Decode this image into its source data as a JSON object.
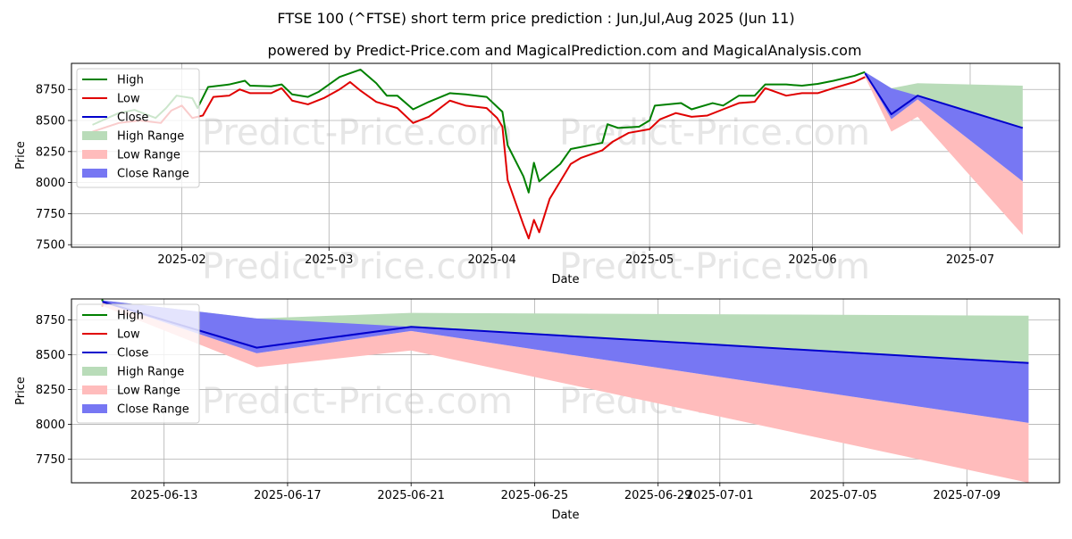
{
  "title": "FTSE 100 (^FTSE) short term price prediction : Jun,Jul,Aug 2025 (Jun 11)",
  "subtitle": "powered by Predict-Price.com and MagicalPrediction.com and MagicalAnalysis.com",
  "watermark": "Predict-Price.com",
  "colors": {
    "high": "#008000",
    "low": "#e00000",
    "close": "#0000cc",
    "high_range": "#b9dcb9",
    "low_range": "#ffbcbc",
    "close_range": "#7777f3",
    "grid": "#b0b0b0",
    "watermark": "#e6e6e6"
  },
  "chart_data": [
    {
      "type": "line",
      "xlabel": "Date",
      "ylabel": "Price",
      "xlim": [
        "2025-01-11",
        "2025-07-18"
      ],
      "ylim": [
        7480,
        8960
      ],
      "grid": true,
      "legend": "top-left",
      "x_ticks": [
        "2025-02",
        "2025-03",
        "2025-04",
        "2025-05",
        "2025-06",
        "2025-07"
      ],
      "y_ticks": [
        7500,
        7750,
        8000,
        8250,
        8500,
        8750
      ],
      "legend_entries": [
        "High",
        "Low",
        "Close",
        "High Range",
        "Low Range",
        "Close Range"
      ],
      "series": [
        {
          "name": "High",
          "points": [
            [
              "2025-01-15",
              8465
            ],
            [
              "2025-01-20",
              8560
            ],
            [
              "2025-01-23",
              8585
            ],
            [
              "2025-01-27",
              8520
            ],
            [
              "2025-01-29",
              8600
            ],
            [
              "2025-01-31",
              8700
            ],
            [
              "2025-02-03",
              8680
            ],
            [
              "2025-02-04",
              8600
            ],
            [
              "2025-02-06",
              8770
            ],
            [
              "2025-02-10",
              8790
            ],
            [
              "2025-02-13",
              8820
            ],
            [
              "2025-02-14",
              8780
            ],
            [
              "2025-02-18",
              8775
            ],
            [
              "2025-02-20",
              8790
            ],
            [
              "2025-02-22",
              8710
            ],
            [
              "2025-02-25",
              8690
            ],
            [
              "2025-02-27",
              8730
            ],
            [
              "2025-03-03",
              8850
            ],
            [
              "2025-03-07",
              8910
            ],
            [
              "2025-03-10",
              8800
            ],
            [
              "2025-03-12",
              8700
            ],
            [
              "2025-03-14",
              8700
            ],
            [
              "2025-03-17",
              8590
            ],
            [
              "2025-03-20",
              8650
            ],
            [
              "2025-03-24",
              8720
            ],
            [
              "2025-03-27",
              8710
            ],
            [
              "2025-03-31",
              8690
            ],
            [
              "2025-04-02",
              8610
            ],
            [
              "2025-04-03",
              8570
            ],
            [
              "2025-04-04",
              8300
            ],
            [
              "2025-04-07",
              8050
            ],
            [
              "2025-04-08",
              7920
            ],
            [
              "2025-04-09",
              8160
            ],
            [
              "2025-04-10",
              8010
            ],
            [
              "2025-04-14",
              8150
            ],
            [
              "2025-04-16",
              8270
            ],
            [
              "2025-04-22",
              8320
            ],
            [
              "2025-04-23",
              8470
            ],
            [
              "2025-04-25",
              8440
            ],
            [
              "2025-04-29",
              8450
            ],
            [
              "2025-05-01",
              8500
            ],
            [
              "2025-05-02",
              8620
            ],
            [
              "2025-05-07",
              8640
            ],
            [
              "2025-05-09",
              8590
            ],
            [
              "2025-05-13",
              8640
            ],
            [
              "2025-05-15",
              8620
            ],
            [
              "2025-05-18",
              8700
            ],
            [
              "2025-05-21",
              8700
            ],
            [
              "2025-05-23",
              8790
            ],
            [
              "2025-05-27",
              8790
            ],
            [
              "2025-05-30",
              8780
            ],
            [
              "2025-06-02",
              8795
            ],
            [
              "2025-06-05",
              8820
            ],
            [
              "2025-06-09",
              8860
            ],
            [
              "2025-06-11",
              8890
            ]
          ]
        },
        {
          "name": "Low",
          "points": [
            [
              "2025-01-15",
              8410
            ],
            [
              "2025-01-20",
              8480
            ],
            [
              "2025-01-24",
              8500
            ],
            [
              "2025-01-28",
              8480
            ],
            [
              "2025-01-30",
              8580
            ],
            [
              "2025-02-01",
              8620
            ],
            [
              "2025-02-03",
              8520
            ],
            [
              "2025-02-05",
              8540
            ],
            [
              "2025-02-07",
              8690
            ],
            [
              "2025-02-10",
              8700
            ],
            [
              "2025-02-12",
              8750
            ],
            [
              "2025-02-14",
              8720
            ],
            [
              "2025-02-18",
              8720
            ],
            [
              "2025-02-20",
              8760
            ],
            [
              "2025-02-22",
              8660
            ],
            [
              "2025-02-25",
              8630
            ],
            [
              "2025-02-28",
              8680
            ],
            [
              "2025-03-03",
              8750
            ],
            [
              "2025-03-05",
              8810
            ],
            [
              "2025-03-07",
              8740
            ],
            [
              "2025-03-10",
              8650
            ],
            [
              "2025-03-14",
              8600
            ],
            [
              "2025-03-17",
              8480
            ],
            [
              "2025-03-20",
              8530
            ],
            [
              "2025-03-24",
              8660
            ],
            [
              "2025-03-27",
              8620
            ],
            [
              "2025-03-31",
              8600
            ],
            [
              "2025-04-02",
              8520
            ],
            [
              "2025-04-03",
              8450
            ],
            [
              "2025-04-04",
              8020
            ],
            [
              "2025-04-07",
              7660
            ],
            [
              "2025-04-08",
              7550
            ],
            [
              "2025-04-09",
              7700
            ],
            [
              "2025-04-10",
              7600
            ],
            [
              "2025-04-12",
              7870
            ],
            [
              "2025-04-16",
              8150
            ],
            [
              "2025-04-18",
              8200
            ],
            [
              "2025-04-22",
              8260
            ],
            [
              "2025-04-24",
              8330
            ],
            [
              "2025-04-27",
              8400
            ],
            [
              "2025-05-01",
              8430
            ],
            [
              "2025-05-03",
              8510
            ],
            [
              "2025-05-06",
              8560
            ],
            [
              "2025-05-09",
              8530
            ],
            [
              "2025-05-12",
              8540
            ],
            [
              "2025-05-15",
              8590
            ],
            [
              "2025-05-18",
              8640
            ],
            [
              "2025-05-21",
              8650
            ],
            [
              "2025-05-23",
              8760
            ],
            [
              "2025-05-27",
              8700
            ],
            [
              "2025-05-30",
              8720
            ],
            [
              "2025-06-02",
              8720
            ],
            [
              "2025-06-05",
              8760
            ],
            [
              "2025-06-09",
              8810
            ],
            [
              "2025-06-11",
              8850
            ]
          ]
        },
        {
          "name": "Close",
          "points": [
            [
              "2025-06-11",
              8880
            ],
            [
              "2025-06-16",
              8550
            ],
            [
              "2025-06-21",
              8700
            ],
            [
              "2025-07-11",
              8440
            ]
          ]
        }
      ],
      "ranges": [
        {
          "name": "High Range",
          "upper": [
            [
              "2025-06-11",
              8890
            ],
            [
              "2025-06-16",
              8760
            ],
            [
              "2025-06-21",
              8800
            ],
            [
              "2025-07-11",
              8780
            ]
          ],
          "lower": [
            [
              "2025-06-11",
              8880
            ],
            [
              "2025-06-16",
              8550
            ],
            [
              "2025-06-21",
              8700
            ],
            [
              "2025-07-11",
              8440
            ]
          ]
        },
        {
          "name": "Low Range",
          "upper": [
            [
              "2025-06-11",
              8880
            ],
            [
              "2025-06-16",
              8510
            ],
            [
              "2025-06-21",
              8670
            ],
            [
              "2025-07-11",
              8010
            ]
          ],
          "lower": [
            [
              "2025-06-11",
              8850
            ],
            [
              "2025-06-16",
              8410
            ],
            [
              "2025-06-21",
              8530
            ],
            [
              "2025-07-11",
              7580
            ]
          ]
        },
        {
          "name": "Close Range",
          "upper": [
            [
              "2025-06-11",
              8890
            ],
            [
              "2025-06-16",
              8760
            ],
            [
              "2025-06-21",
              8700
            ],
            [
              "2025-07-11",
              8440
            ]
          ],
          "lower": [
            [
              "2025-06-11",
              8880
            ],
            [
              "2025-06-16",
              8510
            ],
            [
              "2025-06-21",
              8670
            ],
            [
              "2025-07-11",
              8010
            ]
          ]
        }
      ]
    },
    {
      "type": "line",
      "xlabel": "Date",
      "ylabel": "Price",
      "xlim": [
        "2025-06-10",
        "2025-07-12"
      ],
      "ylim": [
        7580,
        8900
      ],
      "grid": true,
      "legend": "top-left",
      "x_ticks": [
        "2025-06-13",
        "2025-06-17",
        "2025-06-21",
        "2025-06-25",
        "2025-06-29",
        "2025-07-01",
        "2025-07-05",
        "2025-07-09"
      ],
      "y_ticks": [
        7750,
        8000,
        8250,
        8500,
        8750
      ],
      "legend_entries": [
        "High",
        "Low",
        "Close",
        "High Range",
        "Low Range",
        "Close Range"
      ],
      "series": [
        {
          "name": "High",
          "points": [
            [
              "2025-06-11",
              8890
            ]
          ]
        },
        {
          "name": "Low",
          "points": [
            [
              "2025-06-11",
              8850
            ]
          ]
        },
        {
          "name": "Close",
          "points": [
            [
              "2025-06-11",
              8880
            ],
            [
              "2025-06-16",
              8550
            ],
            [
              "2025-06-21",
              8700
            ],
            [
              "2025-07-11",
              8440
            ]
          ]
        }
      ],
      "ranges": [
        {
          "name": "High Range",
          "upper": [
            [
              "2025-06-11",
              8890
            ],
            [
              "2025-06-16",
              8760
            ],
            [
              "2025-06-21",
              8800
            ],
            [
              "2025-07-11",
              8780
            ]
          ],
          "lower": [
            [
              "2025-06-11",
              8880
            ],
            [
              "2025-06-16",
              8550
            ],
            [
              "2025-06-21",
              8700
            ],
            [
              "2025-07-11",
              8440
            ]
          ]
        },
        {
          "name": "Low Range",
          "upper": [
            [
              "2025-06-11",
              8880
            ],
            [
              "2025-06-16",
              8510
            ],
            [
              "2025-06-21",
              8670
            ],
            [
              "2025-07-11",
              8010
            ]
          ],
          "lower": [
            [
              "2025-06-11",
              8850
            ],
            [
              "2025-06-16",
              8410
            ],
            [
              "2025-06-21",
              8530
            ],
            [
              "2025-07-11",
              7580
            ]
          ]
        },
        {
          "name": "Close Range",
          "upper": [
            [
              "2025-06-11",
              8890
            ],
            [
              "2025-06-16",
              8760
            ],
            [
              "2025-06-21",
              8700
            ],
            [
              "2025-07-11",
              8440
            ]
          ],
          "lower": [
            [
              "2025-06-11",
              8880
            ],
            [
              "2025-06-16",
              8510
            ],
            [
              "2025-06-21",
              8670
            ],
            [
              "2025-07-11",
              8010
            ]
          ]
        }
      ]
    }
  ]
}
